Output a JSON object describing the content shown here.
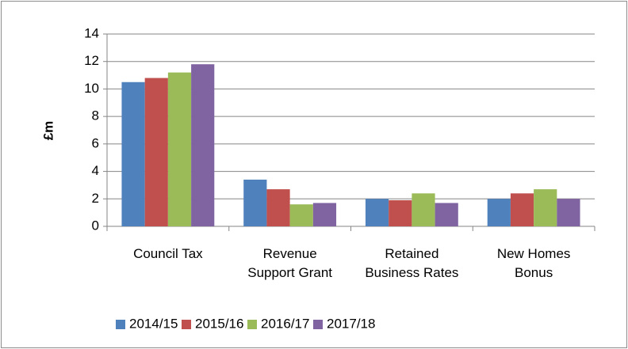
{
  "chart_data": {
    "type": "bar",
    "y_label": "£m",
    "categories": [
      "Council Tax",
      "Revenue Support Grant",
      "Retained Business Rates",
      "New Homes Bonus"
    ],
    "series": [
      {
        "name": "2014/15",
        "color": "#4f81bd",
        "values": [
          10.5,
          3.4,
          2.0,
          2.0
        ]
      },
      {
        "name": "2015/16",
        "color": "#c0504d",
        "values": [
          10.8,
          2.7,
          1.9,
          2.4
        ]
      },
      {
        "name": "2016/17",
        "color": "#9bbb59",
        "values": [
          11.2,
          1.6,
          2.4,
          2.7
        ]
      },
      {
        "name": "2017/18",
        "color": "#8064a2",
        "values": [
          11.8,
          1.7,
          1.7,
          2.0
        ]
      }
    ],
    "ylim": [
      0,
      14
    ],
    "yticks": [
      0,
      2,
      4,
      6,
      8,
      10,
      12,
      14
    ],
    "grid": true,
    "legend": "bottom"
  }
}
